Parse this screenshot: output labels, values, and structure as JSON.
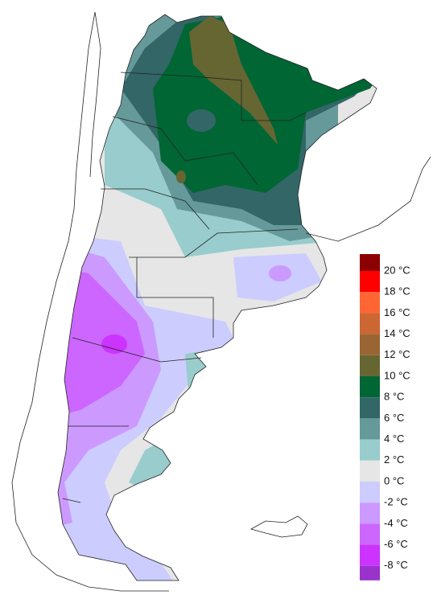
{
  "legend": {
    "swatches": [
      "#8b0000",
      "#ff0000",
      "#ff6633",
      "#cc6633",
      "#996633",
      "#666633",
      "#006633",
      "#336666",
      "#669999",
      "#99cccc",
      "#e6e6e6",
      "#ccccff",
      "#cc99ff",
      "#cc66ff",
      "#cc33ff",
      "#9933cc"
    ],
    "labels": [
      "20 °C",
      "18 °C",
      "16 °C",
      "14 °C",
      "12 °C",
      "10 °C",
      "8 °C",
      "6 °C",
      "4 °C",
      "2 °C",
      "0 °C",
      "-2 °C",
      "-4 °C",
      "-6 °C",
      "-8 °C"
    ]
  }
}
